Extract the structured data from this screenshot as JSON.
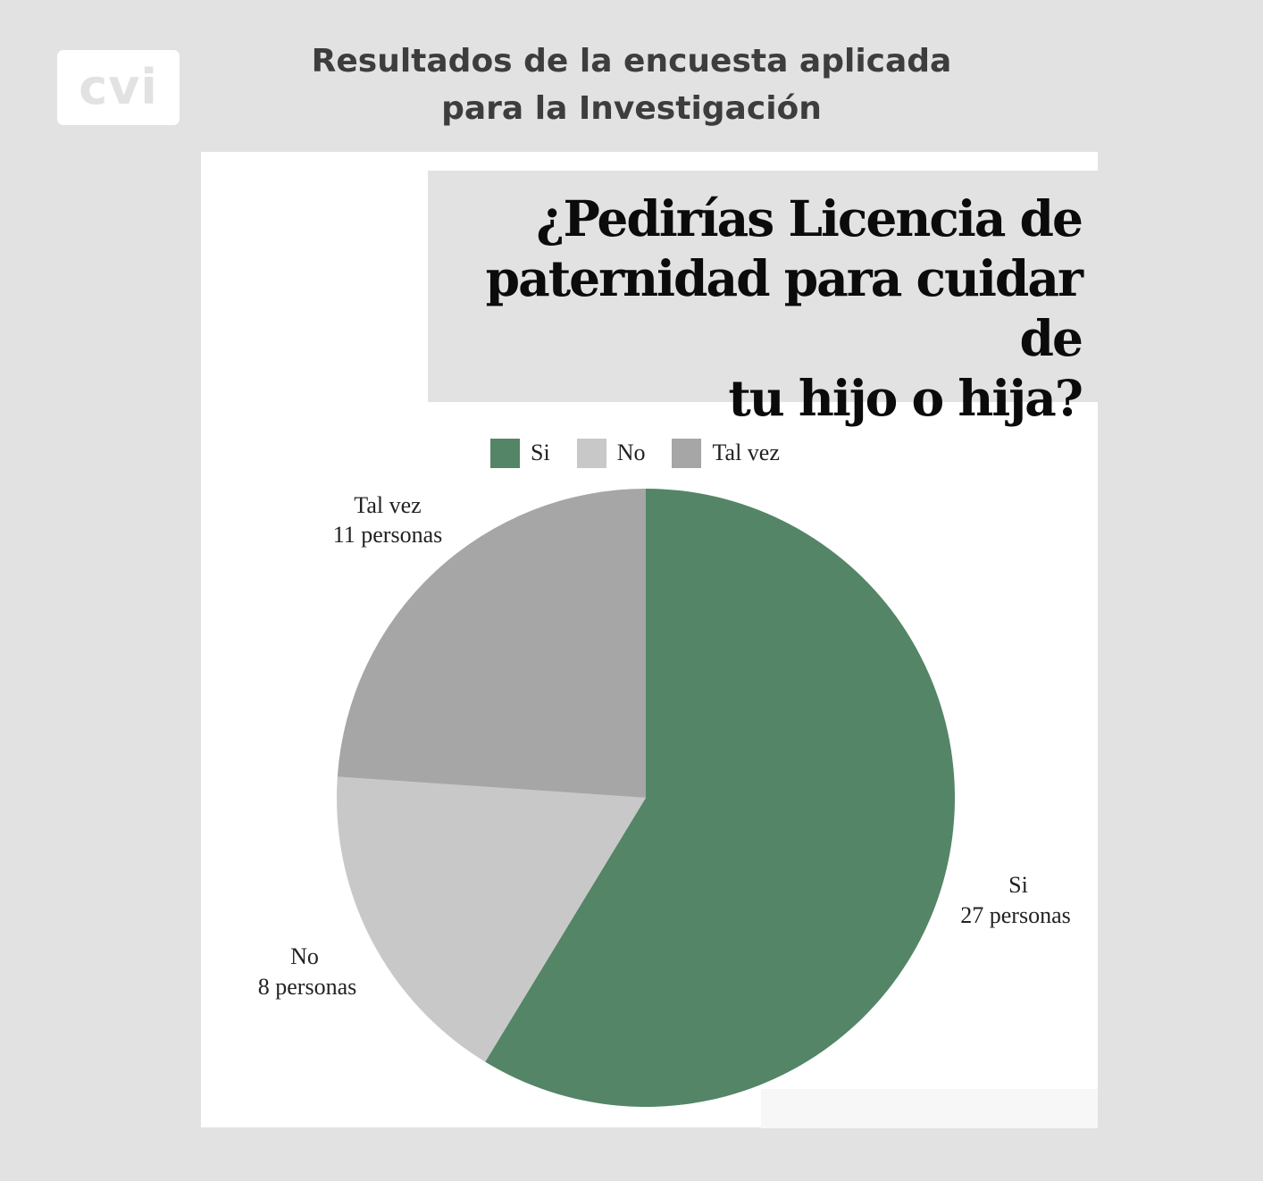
{
  "logo": {
    "text": "cvi"
  },
  "header": {
    "line1": "Resultados de la encuesta aplicada",
    "line2": "para la Investigación"
  },
  "question": {
    "line1": "¿Pedirías Licencia de",
    "line2": "paternidad para cuidar de",
    "line3": "tu hijo o hija?"
  },
  "chart_data": {
    "type": "pie",
    "title": "¿Pedirías Licencia de paternidad para cuidar de tu hijo o hija?",
    "legend_placement": "top",
    "unit": "personas",
    "slices": [
      {
        "name": "Si",
        "value": 27,
        "label": "27 personas",
        "color": "#548567"
      },
      {
        "name": "No",
        "value": 8,
        "label": "8 personas",
        "color": "#c8c8c8"
      },
      {
        "name": "Tal vez",
        "value": 11,
        "label": "11 personas",
        "color": "#a6a6a6"
      }
    ]
  }
}
